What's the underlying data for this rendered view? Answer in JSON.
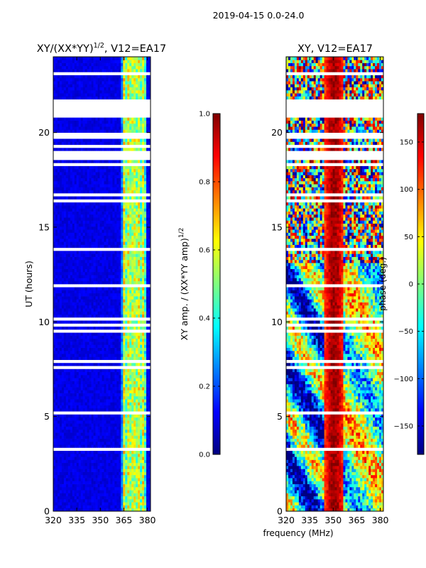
{
  "figure": {
    "suptitle": "2019-04-15 0.0-24.0"
  },
  "chart_data": [
    {
      "type": "heatmap",
      "title": "XY/(XX*YY)^{1/2}, V12=EA17",
      "title_main": "XY/(XX*YY)",
      "title_exp": "1/2",
      "title_tail": ", V12=EA17",
      "xlabel": "",
      "ylabel": "UT (hours)",
      "xlim": [
        320,
        382
      ],
      "ylim": [
        0,
        24
      ],
      "xticks": [
        320,
        335,
        350,
        365,
        380
      ],
      "yticks": [
        0,
        5,
        10,
        15,
        20
      ],
      "colorbar": {
        "label": "XY amp. / (XX*YY amp)^{1/2}",
        "label_main": "XY amp. / (XX*YY amp)",
        "label_exp": "1/2",
        "range": [
          0.0,
          1.0
        ],
        "ticks": [
          "0.0",
          "0.2",
          "0.4",
          "0.6",
          "0.8",
          "1.0"
        ],
        "tick_values": [
          0.0,
          0.2,
          0.4,
          0.6,
          0.8,
          1.0
        ],
        "colormap": "jet"
      }
    },
    {
      "type": "heatmap",
      "title": "XY, V12=EA17",
      "xlabel": "frequency (MHz)",
      "ylabel": "",
      "xlim": [
        320,
        382
      ],
      "ylim": [
        0,
        24
      ],
      "xticks": [
        320,
        335,
        350,
        365,
        380
      ],
      "yticks": [
        0,
        5,
        10,
        15,
        20
      ],
      "colorbar": {
        "label": "phase (deg.)",
        "range": [
          -180,
          180
        ],
        "ticks": [
          "−150",
          "−100",
          "−50",
          "0",
          "50",
          "100",
          "150"
        ],
        "tick_values": [
          -150,
          -100,
          -50,
          0,
          50,
          100,
          150
        ],
        "colormap": "jet"
      }
    }
  ]
}
